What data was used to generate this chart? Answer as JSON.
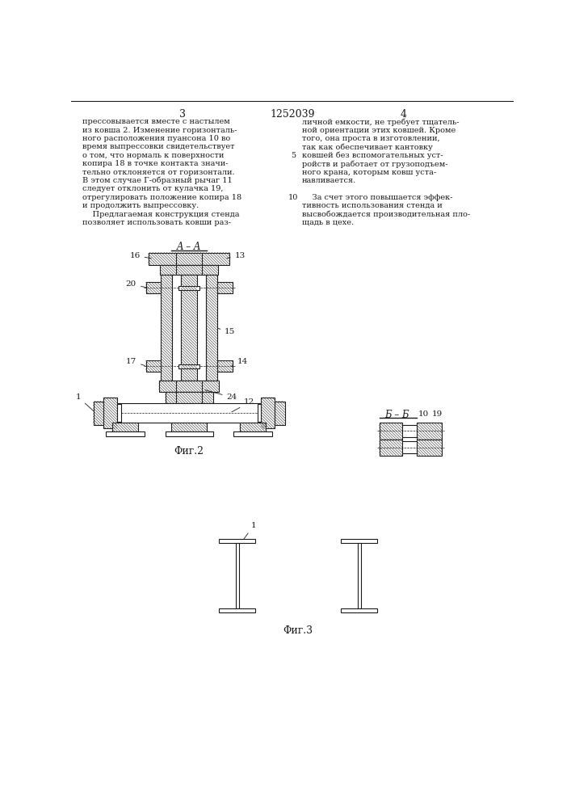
{
  "page_width": 7.07,
  "page_height": 10.0,
  "bg_color": "#ffffff",
  "text_color": "#1a1a1a",
  "line_color": "#1a1a1a",
  "col3_header": "3",
  "patent_number": "1252039",
  "col4_header": "4",
  "left_text": [
    "прессовывается вместе с настылем",
    "из ковша 2. Изменение горизонталь-",
    "ного расположения пуансона 10 во",
    "время выпрессовки свидетельствует",
    "о том, что нормаль к поверхности",
    "копира 18 в точке контакта значи-",
    "тельно отклоняется от горизонтали.",
    "В этом случае Г-образный рычаг 11",
    "следует отклонить от кулачка 19,",
    "отрегулировать положение копира 18",
    "и продолжить выпрессовку.",
    "    Предлагаемая конструкция стенда",
    "позволяет использовать ковши раз-"
  ],
  "right_text": [
    "личной емкости, не требует тщатель-",
    "ной ориентации этих ковшей. Кроме",
    "того, она проста в изготовлении,",
    "так как обеспечивает кантовку",
    "ковшей без вспомогательных уст-",
    "ройств и работает от грузоподъем-",
    "ного крана, которым ковш уста-",
    "навливается.",
    "",
    "    За счет этого повышается эффек-",
    "тивность использования стенда и",
    "высвобождается производительная пло-",
    "щадь в цехе."
  ],
  "fig2_label": "Φиг.2",
  "fig3_label": "Φиг.3",
  "aa_label": "A – A",
  "bb_label": "Б – Б"
}
